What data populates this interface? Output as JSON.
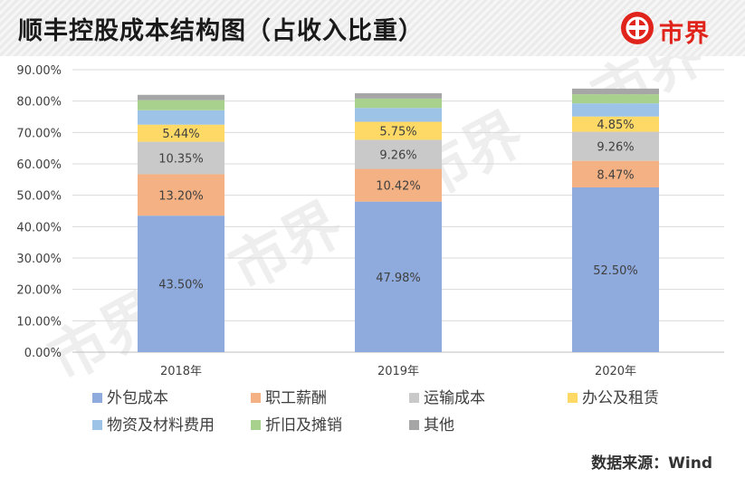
{
  "header": {
    "title": "顺丰控股成本结构图（占收入比重）",
    "logo_text": "市界"
  },
  "footer": {
    "source": "数据来源：Wind"
  },
  "watermark": "市界",
  "chart_data": {
    "type": "bar",
    "stacked": true,
    "title": "顺丰控股成本结构图（占收入比重）",
    "categories": [
      "2018年",
      "2019年",
      "2020年"
    ],
    "ylim": [
      0,
      90
    ],
    "yticks": [
      "0.00%",
      "10.00%",
      "20.00%",
      "30.00%",
      "40.00%",
      "50.00%",
      "60.00%",
      "70.00%",
      "80.00%",
      "90.00%"
    ],
    "grid": true,
    "legend": "bottom",
    "series": [
      {
        "name": "外包成本",
        "color": "#8faadc",
        "values": [
          43.5,
          47.98,
          52.5
        ],
        "labels": [
          "43.50%",
          "47.98%",
          "52.50%"
        ]
      },
      {
        "name": "职工薪酬",
        "color": "#f4b183",
        "values": [
          13.2,
          10.42,
          8.47
        ],
        "labels": [
          "13.20%",
          "10.42%",
          "8.47%"
        ]
      },
      {
        "name": "运输成本",
        "color": "#c9c9c9",
        "values": [
          10.35,
          9.26,
          9.26
        ],
        "labels": [
          "10.35%",
          "9.26%",
          "9.26%"
        ]
      },
      {
        "name": "办公及租赁",
        "color": "#ffd966",
        "values": [
          5.44,
          5.75,
          4.85
        ],
        "labels": [
          "5.44%",
          "5.75%",
          "4.85%"
        ]
      },
      {
        "name": "物资及材料费用",
        "color": "#9dc3e6",
        "values": [
          4.6,
          4.4,
          4.2
        ]
      },
      {
        "name": "折旧及摊销",
        "color": "#a9d18e",
        "values": [
          3.2,
          3.0,
          2.9
        ]
      },
      {
        "name": "其他",
        "color": "#a6a6a6",
        "values": [
          1.7,
          1.7,
          1.8
        ]
      }
    ]
  }
}
